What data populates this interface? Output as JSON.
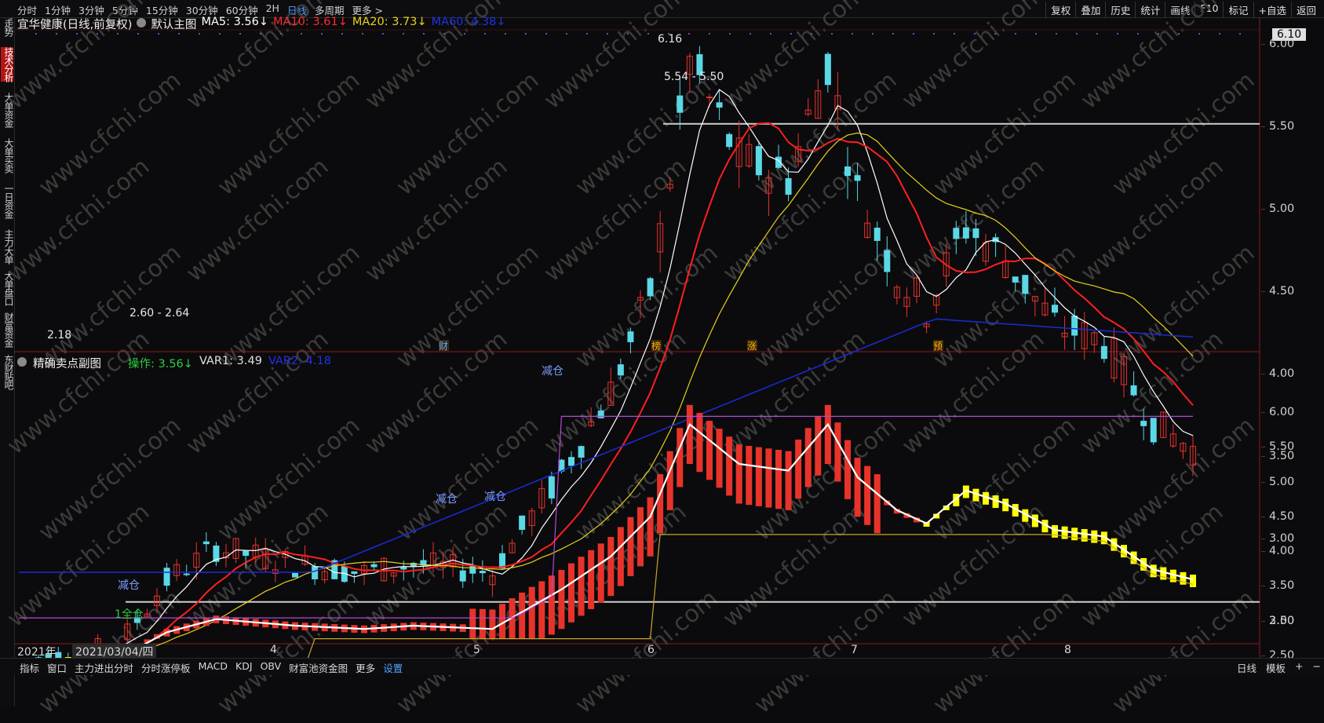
{
  "periods": [
    "分时",
    "1分钟",
    "3分钟",
    "5分钟",
    "15分钟",
    "30分钟",
    "60分钟",
    "2H",
    "日线",
    "多周期",
    "更多 >"
  ],
  "active_period": "日线",
  "right_menu": [
    "复权",
    "叠加",
    "历史",
    "统计",
    "画线",
    "F10",
    "标记",
    "+自选",
    "返回"
  ],
  "left_tabs": [
    {
      "label": "分时走势",
      "active": false
    },
    {
      "label": "技术分析",
      "active": true
    },
    {
      "label": "大单资金",
      "active": false
    },
    {
      "label": "大单买卖",
      "active": false
    },
    {
      "label": "一日资金",
      "active": false
    },
    {
      "label": "主力大单",
      "active": false
    },
    {
      "label": "大单盘口",
      "active": false
    },
    {
      "label": "财富资金",
      "active": false
    },
    {
      "label": "东财贴吧",
      "active": false
    }
  ],
  "main_header": {
    "stock": "宜华健康(日线,前复权)",
    "template": "默认主图",
    "ma5": "MA5: 3.56↓",
    "ma10": "MA10: 3.61↓",
    "ma20": "MA20: 3.73↓",
    "ma60": "MA60: 4.38↓"
  },
  "colors": {
    "up": "#e8332a",
    "down": "#5ad8e6",
    "ma5": "#ffffff",
    "ma10": "#ff1f1f",
    "ma20": "#e6d21a",
    "ma60": "#1a2bd8",
    "yellow_bar": "#ffff00",
    "purple": "#b24ad0",
    "gold": "#c9a42a",
    "panel_border": "#8e1a1a"
  },
  "sub_header": {
    "title": "精确卖点副图",
    "op": "操作: 3.56↓",
    "var1": "VAR1: 3.49",
    "var2": "VAR2: 4.18"
  },
  "price_ticks": [
    "6.00",
    "5.50",
    "5.00",
    "4.50",
    "4.00",
    "3.50",
    "3.00",
    "2.50"
  ],
  "sub_ticks": [
    "6.00",
    "5.50",
    "5.00",
    "4.50",
    "4.00",
    "3.50",
    "3.00",
    "2.50"
  ],
  "last_price": "6.10",
  "annotations": {
    "high": "6.16",
    "low": "2.18",
    "range_high": "5.54 - 5.50",
    "range_low": "2.60 - 2.64",
    "events": [
      "财",
      "榜",
      "涨",
      "预"
    ],
    "signal_reduce": "减仓",
    "signal_full": "全仓"
  },
  "date_axis": {
    "year_label": "2021年",
    "cursor_date": "2021/03/04/四",
    "months": [
      "4",
      "5",
      "6",
      "7",
      "8"
    ]
  },
  "bottom_tabs": [
    "指标",
    "窗口",
    "主力进出分时",
    "分时涨停板",
    "MACD",
    "KDJ",
    "OBV",
    "财富池资金图",
    "更多",
    "设置"
  ],
  "active_bottom_tab": "设置",
  "bottom_right": [
    "日线",
    "模板",
    "+",
    "−"
  ],
  "watermark": "www.cfchi.com"
}
